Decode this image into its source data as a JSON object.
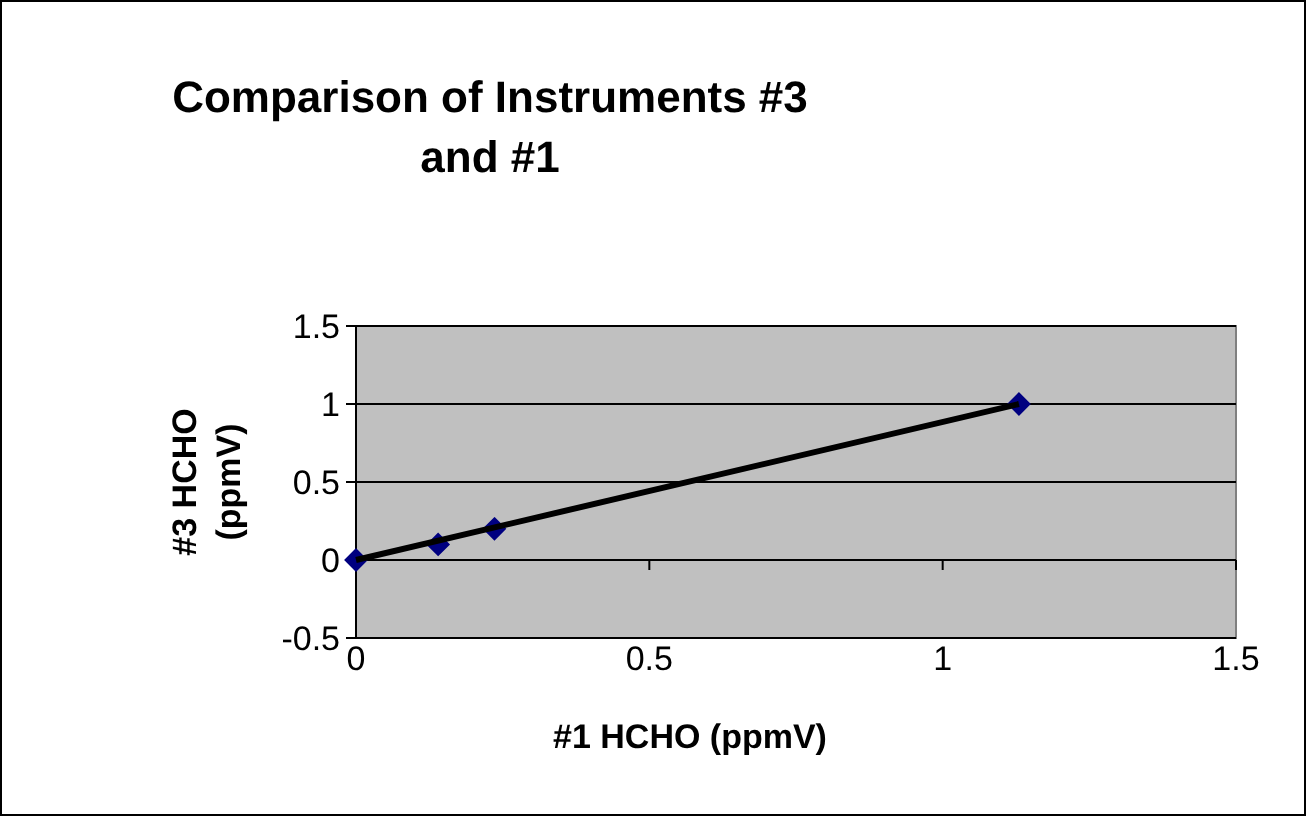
{
  "chart_data": {
    "type": "scatter",
    "title": "Comparison of Instruments #3 and #1",
    "xlabel": "#1 HCHO (ppmV)",
    "ylabel": "#3 HCHO (ppmV)",
    "xlim": [
      0,
      1.5
    ],
    "xticks": [
      0,
      0.5,
      1,
      1.5
    ],
    "ylim": [
      -0.5,
      1.5
    ],
    "yticks": [
      -0.5,
      0,
      0.5,
      1,
      1.5
    ],
    "grid": "y",
    "marker": "diamond",
    "series": [
      {
        "color": "#000080",
        "x": [
          0,
          0.14,
          0.236,
          1.13
        ],
        "values": [
          0,
          0.1,
          0.2,
          1.0
        ]
      },
      {
        "type": "line",
        "color": "#000000",
        "x": [
          0,
          1.13
        ],
        "values": [
          0,
          1.0
        ],
        "marker": "none",
        "line_style": "solid"
      }
    ]
  }
}
